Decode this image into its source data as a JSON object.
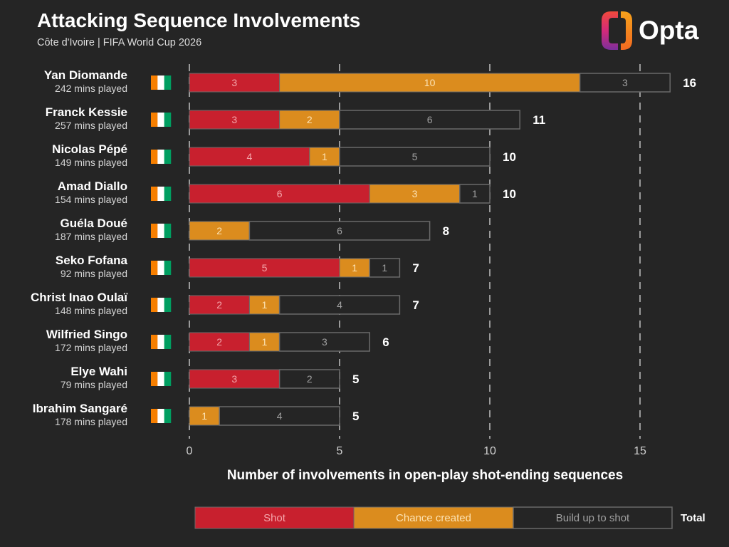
{
  "logo": {
    "text": "Opta",
    "icon": "opta-logo-icon"
  },
  "colors": {
    "background": "#252525",
    "shot": "#c8202e",
    "chance_created": "#db8c1e",
    "build_up": "#252525",
    "build_up_border": "#8c8c8c",
    "gridline": "#9a9a9a",
    "flag": [
      "#f77f00",
      "#ffffff",
      "#009e60"
    ]
  },
  "chart_data": {
    "type": "bar",
    "orientation": "horizontal",
    "stacked": true,
    "title": "Attacking Sequence Involvements",
    "subtitle": "Côte d'Ivoire | FIFA World Cup 2026",
    "xlabel": "Number of involvements in open-play shot-ending sequences",
    "xlim": [
      0,
      16
    ],
    "xticks": [
      0,
      5,
      10,
      15
    ],
    "grid": true,
    "legend": "bottom",
    "category_icon": "cote-divoire-flag-icon",
    "categories": [
      "Yan Diomande",
      "Franck Kessie",
      "Nicolas Pépé",
      "Amad Diallo",
      "Guéla Doué",
      "Seko Fofana",
      "Christ Inao Oulaï",
      "Wilfried Singo",
      "Elye Wahi",
      "Ibrahim Sangaré"
    ],
    "category_sublabels": [
      "242 mins played",
      "257 mins played",
      "149 mins played",
      "154 mins played",
      "187 mins played",
      "92 mins played",
      "148 mins played",
      "172 mins played",
      "79 mins played",
      "178 mins played"
    ],
    "series": [
      {
        "name": "Shot",
        "values": [
          3,
          3,
          4,
          6,
          0,
          5,
          2,
          2,
          3,
          0
        ]
      },
      {
        "name": "Chance created",
        "values": [
          10,
          2,
          1,
          3,
          2,
          1,
          1,
          1,
          0,
          1
        ]
      },
      {
        "name": "Build up to shot",
        "values": [
          3,
          6,
          5,
          1,
          6,
          1,
          4,
          3,
          2,
          4
        ]
      }
    ],
    "totals": [
      16,
      11,
      10,
      10,
      8,
      7,
      7,
      6,
      5,
      5
    ],
    "total_label": "Total"
  }
}
